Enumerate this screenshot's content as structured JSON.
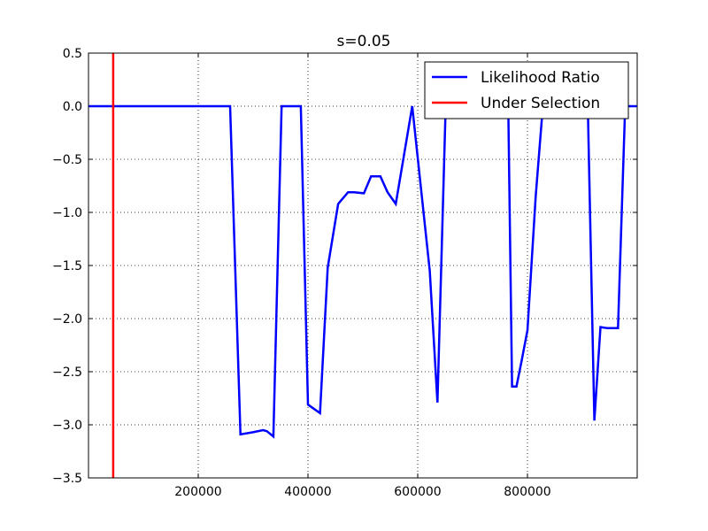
{
  "chart_data": {
    "type": "line",
    "title": "s=0.05",
    "xlabel": "",
    "ylabel": "",
    "xlim": [
      0,
      1000000
    ],
    "ylim": [
      -3.5,
      0.5
    ],
    "grid": true,
    "legend_position": "top-right",
    "x_ticks": [
      200000,
      400000,
      600000,
      800000
    ],
    "x_tick_labels": [
      "200000",
      "400000",
      "600000",
      "800000"
    ],
    "y_ticks": [
      0.5,
      0.0,
      -0.5,
      -1.0,
      -1.5,
      -2.0,
      -2.5,
      -3.0,
      -3.5
    ],
    "y_tick_labels": [
      "0.5",
      "0.0",
      "−0.5",
      "−1.0",
      "−1.5",
      "−2.0",
      "−2.5",
      "−3.0",
      "−3.5"
    ],
    "series": [
      {
        "name": "Likelihood Ratio",
        "color": "#0000ff",
        "x": [
          0,
          258000,
          277000,
          300000,
          318000,
          325000,
          337000,
          352000,
          375000,
          387000,
          400000,
          422000,
          436000,
          455000,
          473000,
          484000,
          502000,
          515000,
          532000,
          545000,
          560000,
          590000,
          622000,
          636000,
          651000,
          670000,
          700000,
          750000,
          765000,
          772000,
          780000,
          790000,
          800000,
          815000,
          828000,
          860000,
          900000,
          910000,
          922000,
          933000,
          946000,
          965000,
          978000,
          1000000
        ],
        "y": [
          0.0,
          0.0,
          -3.09,
          -3.07,
          -3.05,
          -3.06,
          -3.11,
          0.0,
          0.0,
          0.0,
          -2.81,
          -2.89,
          -1.52,
          -0.92,
          -0.81,
          -0.81,
          -0.82,
          -0.66,
          -0.66,
          -0.81,
          -0.92,
          0.0,
          -1.55,
          -2.79,
          0.0,
          0.0,
          0.0,
          0.0,
          0.0,
          -2.64,
          -2.64,
          -2.38,
          -2.11,
          -0.85,
          0.0,
          0.0,
          0.0,
          0.0,
          -2.96,
          -2.08,
          -2.09,
          -2.09,
          0.0,
          0.0
        ]
      },
      {
        "name": "Under Selection",
        "color": "#ff0000",
        "type": "vline",
        "x": 45000
      }
    ]
  }
}
